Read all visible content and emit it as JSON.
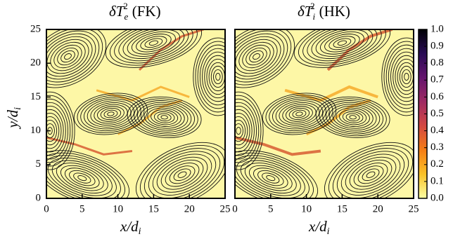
{
  "chart_data": [
    {
      "type": "heatmap",
      "title": {
        "symbol": "δT",
        "sub": "e",
        "sup": "2",
        "suffix": "(FK)"
      },
      "xlabel": {
        "main": "x/d",
        "sub": "i"
      },
      "ylabel": {
        "main": "y/d",
        "sub": "i"
      },
      "xlim": [
        0,
        25
      ],
      "ylim": [
        0,
        25
      ],
      "xticks": [
        0,
        5,
        10,
        15,
        20,
        25
      ],
      "yticks": [
        0,
        5,
        10,
        15,
        20,
        25
      ]
    },
    {
      "type": "heatmap",
      "title": {
        "symbol": "δT",
        "sub": "i",
        "sup": "2",
        "suffix": "(HK)"
      },
      "xlabel": {
        "main": "x/d",
        "sub": "i"
      },
      "xlim": [
        0,
        25
      ],
      "ylim": [
        0,
        25
      ],
      "xticks": [
        0,
        5,
        10,
        15,
        20,
        25
      ]
    }
  ],
  "colorbar": {
    "lim": [
      0,
      1
    ],
    "ticks": [
      {
        "value": 0,
        "label": "0.0"
      },
      0.1,
      0.2,
      0.3,
      0.4,
      0.5,
      0.6,
      0.7,
      0.8,
      0.9,
      {
        "value": 1,
        "label": "1.0"
      }
    ],
    "colors": [
      "#fcffa4",
      "#fac228",
      "#f57d15",
      "#d44842",
      "#9f2a63",
      "#65156e",
      "#280b54",
      "#000004"
    ]
  }
}
